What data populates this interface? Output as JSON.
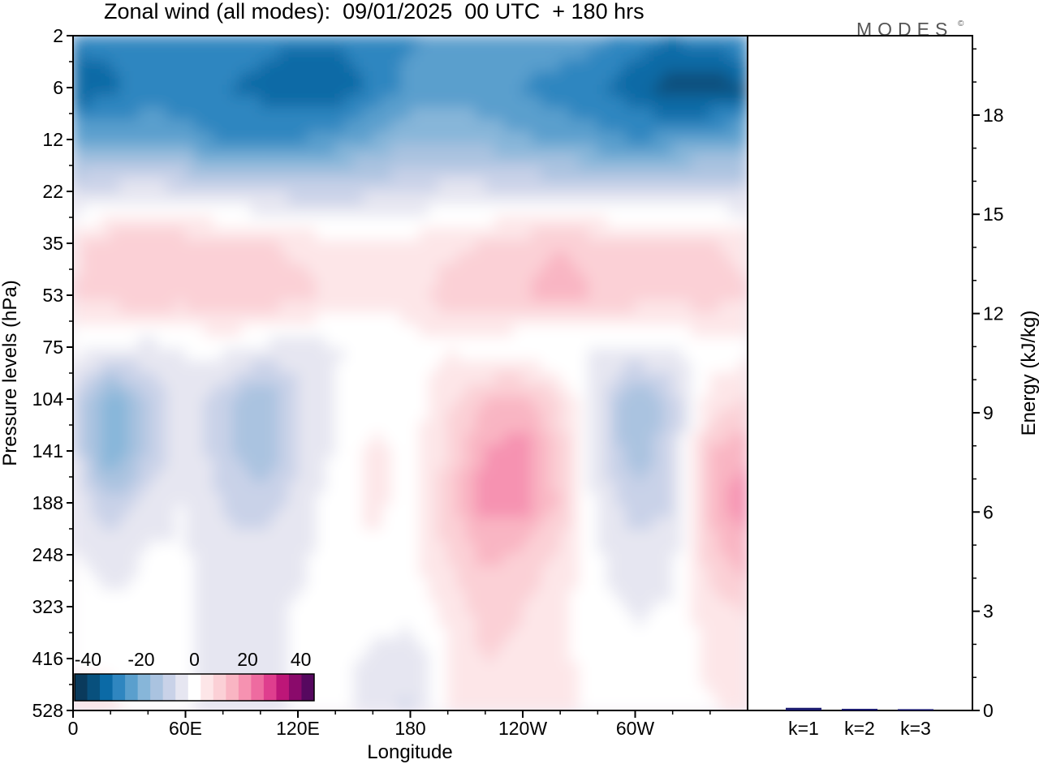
{
  "chart_data": [
    {
      "type": "heatmap",
      "title": "Zonal wind (all modes):  09/01/2025  00 UTC  + 180 hrs",
      "xlabel": "Longitude",
      "ylabel": "Pressure levels (hPa)",
      "x_ticks": [
        "0",
        "60E",
        "120E",
        "180",
        "120W",
        "60W"
      ],
      "x_tick_degrees": [
        0,
        60,
        120,
        180,
        240,
        300
      ],
      "xlim": [
        0,
        360
      ],
      "y_ticks": [
        "2",
        "6",
        "12",
        "22",
        "35",
        "53",
        "75",
        "104",
        "141",
        "188",
        "248",
        "323",
        "416",
        "528"
      ],
      "y_order": "top-to-bottom",
      "colorbar": {
        "labels": [
          "-40",
          "-20",
          "0",
          "20",
          "40"
        ],
        "label_values": [
          -40,
          -20,
          0,
          20,
          40
        ],
        "range": [
          -45,
          45
        ],
        "levels": [
          -45,
          -40,
          -35,
          -30,
          -25,
          -20,
          -15,
          -10,
          -5,
          0,
          5,
          10,
          15,
          20,
          25,
          30,
          35,
          40,
          45
        ],
        "colors": [
          "#0a3a5c",
          "#08507d",
          "#0b6aa6",
          "#2f86c0",
          "#5a9fcd",
          "#87b6d9",
          "#aac3e0",
          "#c9d2e8",
          "#e6e6f1",
          "#ffffff",
          "#fde6e8",
          "#fbd0d6",
          "#f9b5c3",
          "#f692b1",
          "#ee6ba0",
          "#df3e8e",
          "#bd1678",
          "#8a0a6b",
          "#56085f"
        ]
      },
      "field": {
        "x_deg": [
          0,
          20,
          40,
          60,
          80,
          100,
          120,
          140,
          160,
          180,
          200,
          220,
          240,
          260,
          280,
          300,
          320,
          340,
          360
        ],
        "levels_hpa": [
          2,
          6,
          12,
          22,
          35,
          53,
          75,
          104,
          141,
          188,
          248,
          323,
          416,
          528
        ],
        "values": [
          [
            -30,
            -30,
            -30,
            -30,
            -30,
            -30,
            -32,
            -32,
            -30,
            -28,
            -26,
            -24,
            -22,
            -24,
            -26,
            -30,
            -32,
            -30,
            -28
          ],
          [
            -38,
            -34,
            -30,
            -30,
            -32,
            -34,
            -36,
            -36,
            -32,
            -26,
            -24,
            -26,
            -28,
            -30,
            -32,
            -36,
            -40,
            -42,
            -38
          ],
          [
            -22,
            -24,
            -24,
            -26,
            -28,
            -28,
            -28,
            -26,
            -22,
            -18,
            -18,
            -20,
            -22,
            -24,
            -26,
            -28,
            -26,
            -24,
            -22
          ],
          [
            -8,
            -6,
            -5,
            -6,
            -8,
            -9,
            -10,
            -10,
            -9,
            -8,
            -6,
            -6,
            -7,
            -8,
            -8,
            -8,
            -8,
            -8,
            -8
          ],
          [
            6,
            10,
            12,
            10,
            9,
            8,
            6,
            4,
            3,
            4,
            6,
            8,
            10,
            12,
            10,
            8,
            9,
            8,
            6
          ],
          [
            8,
            10,
            12,
            10,
            12,
            12,
            10,
            6,
            4,
            5,
            10,
            10,
            12,
            16,
            12,
            10,
            10,
            10,
            8
          ],
          [
            0,
            -2,
            -4,
            -2,
            -1,
            -3,
            -5,
            -3,
            -1,
            0,
            2,
            0,
            -2,
            -4,
            -2,
            -2,
            -2,
            0,
            0
          ],
          [
            -8,
            -22,
            -12,
            -4,
            -10,
            -18,
            -8,
            -2,
            0,
            0,
            6,
            12,
            14,
            8,
            -6,
            -18,
            -10,
            4,
            8
          ],
          [
            -6,
            -24,
            -12,
            -4,
            -10,
            -18,
            -8,
            -2,
            4,
            0,
            8,
            18,
            20,
            10,
            -6,
            -16,
            -10,
            12,
            16
          ],
          [
            -4,
            -12,
            -6,
            -2,
            -8,
            -10,
            -6,
            0,
            4,
            0,
            10,
            20,
            20,
            12,
            -4,
            -10,
            -8,
            14,
            22
          ],
          [
            -2,
            -4,
            -2,
            -2,
            -6,
            -6,
            -4,
            0,
            2,
            0,
            8,
            14,
            12,
            6,
            -2,
            -6,
            -4,
            10,
            16
          ],
          [
            0,
            -2,
            -2,
            -2,
            -5,
            -5,
            -2,
            0,
            1,
            0,
            4,
            10,
            8,
            4,
            -1,
            -3,
            -2,
            6,
            8
          ],
          [
            2,
            2,
            0,
            -2,
            -5,
            -6,
            -2,
            0,
            -4,
            -6,
            2,
            8,
            6,
            4,
            0,
            -2,
            -2,
            4,
            6
          ],
          [
            4,
            4,
            0,
            -2,
            -5,
            -6,
            -2,
            0,
            -6,
            -8,
            2,
            6,
            4,
            4,
            0,
            -2,
            -2,
            2,
            4
          ]
        ]
      },
      "panel_type": "heatmap",
      "grid": false
    },
    {
      "type": "bar",
      "ylabel": "Energy (kJ/kg)",
      "categories": [
        "k=1",
        "k=2",
        "k=3"
      ],
      "values": [
        0.08,
        0.05,
        0.04
      ],
      "bar_color": "#1a1a6e",
      "ylim": [
        0,
        20.4
      ],
      "y_ticks": [
        "0",
        "3",
        "6",
        "9",
        "12",
        "15",
        "18"
      ],
      "y_tick_values": [
        0,
        3,
        6,
        9,
        12,
        15,
        18
      ],
      "y_axis_side": "right",
      "grid": false
    }
  ],
  "brand": {
    "name": "MODES",
    "mark": "©"
  }
}
